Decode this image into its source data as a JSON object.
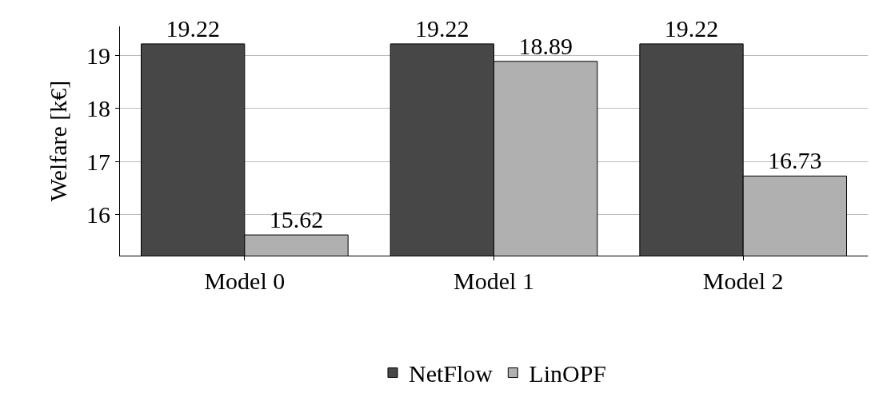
{
  "chart_data": {
    "type": "bar",
    "ylabel": "Welfare [k€]",
    "categories": [
      "Model 0",
      "Model 1",
      "Model 2"
    ],
    "series": [
      {
        "name": "NetFlow",
        "color": "#474747",
        "values": [
          19.22,
          19.22,
          19.22
        ]
      },
      {
        "name": "LinOPF",
        "color": "#b0b0b0",
        "values": [
          15.62,
          18.89,
          16.73
        ]
      }
    ],
    "ylim": [
      15.23,
      19.55
    ],
    "yticks": [
      16,
      17,
      18,
      19
    ],
    "grid": "y",
    "legend": "bottom",
    "data_labels": true
  }
}
